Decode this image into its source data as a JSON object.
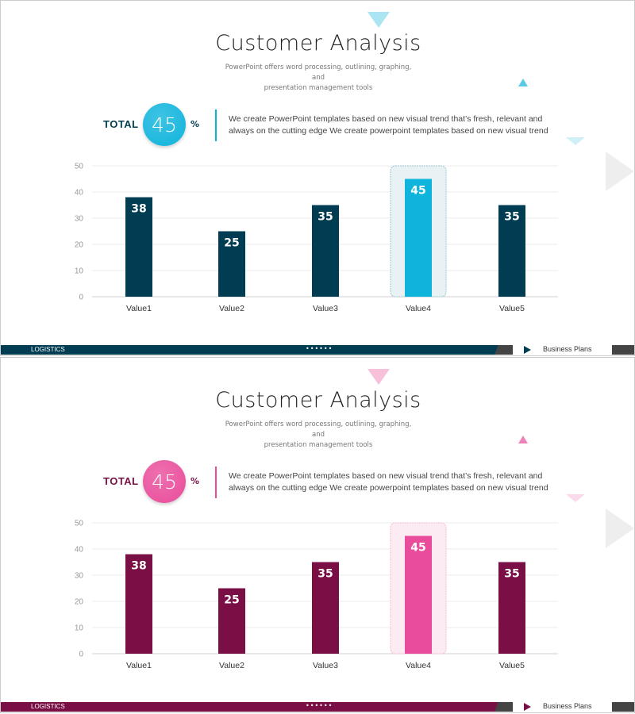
{
  "slides": [
    {
      "theme": {
        "dark": "#003d52",
        "accent": "#0fb4dc",
        "highlight_bg": "#e8f2f5",
        "highlight_border": "#9cc5cf"
      },
      "title": "Customer Analysis",
      "subtitle_line1": "PowerPoint offers word processing, outlining, graphing, and",
      "subtitle_line2": "presentation management  tools",
      "total_label": "TOTAL",
      "total_value": "45",
      "total_unit": "%",
      "description_line1": "We create PowerPoint templates based on new visual trend that’s fresh, relevant and",
      "description_line2": "always on the cutting edge We create powerpoint templates based on new visual trend",
      "footer": {
        "left_label": "LOGISTICS",
        "dots": "••••••",
        "right_label": "Business Plans"
      }
    },
    {
      "theme": {
        "dark": "#7a0f45",
        "accent": "#e94c9b",
        "highlight_bg": "#fcebf3",
        "highlight_border": "#f2bcd6"
      },
      "title": "Customer Analysis",
      "subtitle_line1": "PowerPoint offers word processing, outlining, graphing, and",
      "subtitle_line2": "presentation management  tools",
      "total_label": "TOTAL",
      "total_value": "45",
      "total_unit": "%",
      "description_line1": "We create PowerPoint templates based on new visual trend that’s fresh, relevant and",
      "description_line2": "always on the cutting edge We create powerpoint templates based on new visual trend",
      "footer": {
        "left_label": "LOGISTICS",
        "dots": "••••••",
        "right_label": "Business Plans"
      }
    }
  ],
  "chart_data": [
    {
      "type": "bar",
      "categories": [
        "Value1",
        "Value2",
        "Value3",
        "Value4",
        "Value5"
      ],
      "values": [
        38,
        25,
        35,
        45,
        35
      ],
      "data_labels": [
        "38",
        "25",
        "35",
        "45",
        "35"
      ],
      "highlighted": "Value4",
      "ylim": [
        0,
        50
      ],
      "yticks": [
        "0",
        "10",
        "20",
        "30",
        "40",
        "50"
      ],
      "grid": true,
      "xlabel": "",
      "ylabel": "",
      "title": ""
    },
    {
      "type": "bar",
      "categories": [
        "Value1",
        "Value2",
        "Value3",
        "Value4",
        "Value5"
      ],
      "values": [
        38,
        25,
        35,
        45,
        35
      ],
      "data_labels": [
        "38",
        "25",
        "35",
        "45",
        "35"
      ],
      "highlighted": "Value4",
      "ylim": [
        0,
        50
      ],
      "yticks": [
        "0",
        "10",
        "20",
        "30",
        "40",
        "50"
      ],
      "grid": true,
      "xlabel": "",
      "ylabel": "",
      "title": ""
    }
  ]
}
